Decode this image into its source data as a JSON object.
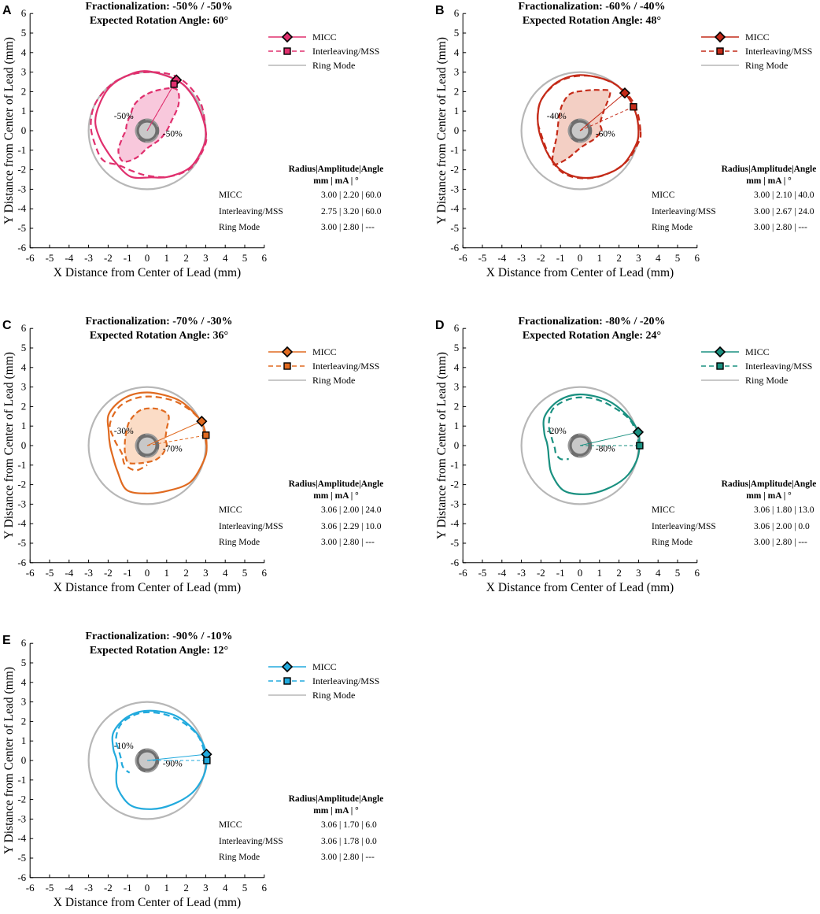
{
  "shared": {
    "xlabel": "X Distance from Center of Lead (mm)",
    "ylabel": "Y Distance from Center of Lead (mm)",
    "xlim": [
      -6,
      6
    ],
    "ylim": [
      -6,
      6
    ],
    "xticks": [
      -6,
      -5,
      -4,
      -3,
      -2,
      -1,
      0,
      1,
      2,
      3,
      4,
      5,
      6
    ],
    "yticks": [
      -6,
      -5,
      -4,
      -3,
      -2,
      -1,
      0,
      1,
      2,
      3,
      4,
      5,
      6
    ],
    "legend": {
      "micc": "MICC",
      "interleaving": "Interleaving/MSS",
      "ring": "Ring Mode"
    },
    "table_header": {
      "row1": "Radius|Amplitude|Angle",
      "row2": "mm  |     mA    |   °"
    },
    "ring_color": "#b7b7b7",
    "lead_outer_color": "#6e6e6e",
    "lead_inner_color": "#c8c8c8"
  },
  "chart_data": [
    {
      "panel": "A",
      "type": "line",
      "title": "Fractionalization: -50% / -50%",
      "subtitle": "Expected Rotation Angle: 60°",
      "color": "#e0306e",
      "fill": "#f8c8dc",
      "contact_labels": [
        "-50%",
        "-50%"
      ],
      "micc": {
        "radius": 3.0,
        "amplitude": 2.2,
        "angle": 60.0,
        "text": "3.00 | 2.20 | 60.0"
      },
      "interleaving": {
        "radius": 2.75,
        "amplitude": 3.2,
        "angle": 60.0,
        "text": "2.75 | 3.20 | 60.0"
      },
      "ring": {
        "radius": 3.0,
        "amplitude": 2.8,
        "text": "3.00 | 2.80 | ---"
      },
      "micc_curve": [
        [
          0,
          3.0
        ],
        [
          20,
          2.9
        ],
        [
          40,
          2.95
        ],
        [
          60,
          3.0
        ],
        [
          90,
          3.05
        ],
        [
          110,
          3.0
        ],
        [
          130,
          2.95
        ],
        [
          150,
          2.8
        ],
        [
          170,
          2.7
        ],
        [
          190,
          2.45
        ],
        [
          210,
          2.3
        ],
        [
          225,
          2.3
        ],
        [
          250,
          2.5
        ],
        [
          275,
          2.4
        ],
        [
          295,
          2.6
        ],
        [
          320,
          2.9
        ],
        [
          345,
          3.0
        ]
      ],
      "interleaving_curve": [
        [
          0,
          3.0
        ],
        [
          30,
          3.1
        ],
        [
          60,
          3.15
        ],
        [
          90,
          3.0
        ],
        [
          120,
          3.0
        ],
        [
          150,
          3.0
        ],
        [
          175,
          2.9
        ],
        [
          200,
          2.75
        ],
        [
          215,
          2.7
        ],
        [
          230,
          2.3
        ],
        [
          250,
          2.2
        ],
        [
          270,
          2.3
        ],
        [
          295,
          2.6
        ],
        [
          320,
          2.95
        ],
        [
          345,
          3.05
        ]
      ],
      "region_curve": [
        [
          0,
          1.0
        ],
        [
          20,
          1.3
        ],
        [
          40,
          2.1
        ],
        [
          55,
          2.6
        ],
        [
          75,
          2.15
        ],
        [
          95,
          1.8
        ],
        [
          115,
          1.5
        ],
        [
          135,
          1.2
        ],
        [
          160,
          1.1
        ],
        [
          180,
          1.1
        ],
        [
          195,
          1.3
        ],
        [
          215,
          1.8
        ],
        [
          232,
          2.0
        ],
        [
          248,
          1.5
        ],
        [
          270,
          0.9
        ],
        [
          300,
          0.75
        ],
        [
          330,
          0.8
        ]
      ]
    },
    {
      "panel": "B",
      "type": "line",
      "title": "Fractionalization: -60% / -40%",
      "subtitle": "Expected Rotation Angle: 48°",
      "color": "#c42a18",
      "fill": "#f3cfc4",
      "contact_labels": [
        "-40%",
        "-60%"
      ],
      "micc": {
        "radius": 3.0,
        "amplitude": 2.1,
        "angle": 40.0,
        "text": "3.00 | 2.10 | 40.0"
      },
      "interleaving": {
        "radius": 3.0,
        "amplitude": 2.67,
        "angle": 24.0,
        "text": "3.00 | 2.67 | 24.0"
      },
      "ring": {
        "radius": 3.0,
        "amplitude": 2.8,
        "text": "3.00 | 2.80 | ---"
      },
      "micc_curve": [
        [
          0,
          3.0
        ],
        [
          20,
          3.0
        ],
        [
          40,
          3.0
        ],
        [
          60,
          2.95
        ],
        [
          90,
          2.85
        ],
        [
          115,
          2.75
        ],
        [
          140,
          2.55
        ],
        [
          160,
          2.3
        ],
        [
          180,
          2.1
        ],
        [
          200,
          2.0
        ],
        [
          220,
          2.05
        ],
        [
          245,
          2.25
        ],
        [
          270,
          2.4
        ],
        [
          295,
          2.55
        ],
        [
          320,
          2.8
        ],
        [
          345,
          2.95
        ]
      ],
      "interleaving_curve": [
        [
          0,
          3.1
        ],
        [
          25,
          3.1
        ],
        [
          50,
          3.0
        ],
        [
          80,
          2.85
        ],
        [
          110,
          2.75
        ],
        [
          140,
          2.55
        ],
        [
          165,
          2.25
        ],
        [
          185,
          2.0
        ],
        [
          205,
          1.95
        ],
        [
          225,
          2.1
        ],
        [
          250,
          2.35
        ],
        [
          275,
          2.45
        ],
        [
          300,
          2.6
        ],
        [
          325,
          2.85
        ],
        [
          348,
          3.05
        ]
      ],
      "region_curve": [
        [
          0,
          1.1
        ],
        [
          20,
          1.1
        ],
        [
          40,
          1.6
        ],
        [
          52,
          2.5
        ],
        [
          65,
          2.3
        ],
        [
          85,
          2.05
        ],
        [
          105,
          1.95
        ],
        [
          125,
          1.6
        ],
        [
          150,
          1.25
        ],
        [
          175,
          1.15
        ],
        [
          200,
          1.3
        ],
        [
          220,
          1.8
        ],
        [
          232,
          2.2
        ],
        [
          245,
          1.6
        ],
        [
          270,
          0.9
        ],
        [
          300,
          0.75
        ],
        [
          330,
          0.85
        ]
      ]
    },
    {
      "panel": "C",
      "type": "line",
      "title": "Fractionalization: -70% / -30%",
      "subtitle": "Expected Rotation Angle: 36°",
      "color": "#e06a20",
      "fill": "#fbdcc6",
      "contact_labels": [
        "-30%",
        "-70%"
      ],
      "micc": {
        "radius": 3.06,
        "amplitude": 2.0,
        "angle": 24.0,
        "text": "3.06 | 2.00 | 24.0"
      },
      "interleaving": {
        "radius": 3.06,
        "amplitude": 2.29,
        "angle": 10.0,
        "text": "3.06 | 2.29 | 10.0"
      },
      "ring": {
        "radius": 3.0,
        "amplitude": 2.8,
        "text": "3.00 | 2.80 | ---"
      },
      "micc_curve": [
        [
          0,
          3.05
        ],
        [
          20,
          3.05
        ],
        [
          40,
          2.9
        ],
        [
          60,
          2.8
        ],
        [
          90,
          2.72
        ],
        [
          115,
          2.7
        ],
        [
          140,
          2.55
        ],
        [
          160,
          2.1
        ],
        [
          180,
          1.9
        ],
        [
          200,
          1.85
        ],
        [
          220,
          2.0
        ],
        [
          245,
          2.5
        ],
        [
          270,
          2.45
        ],
        [
          295,
          2.55
        ],
        [
          320,
          2.9
        ],
        [
          345,
          3.0
        ]
      ],
      "interleaving_curve": [
        [
          0,
          3.05
        ],
        [
          25,
          3.0
        ],
        [
          50,
          2.75
        ],
        [
          75,
          2.55
        ],
        [
          100,
          2.5
        ],
        [
          125,
          2.45
        ],
        [
          150,
          2.2
        ],
        [
          170,
          1.7
        ],
        [
          185,
          1.45
        ],
        [
          200,
          1.35
        ],
        [
          220,
          1.5
        ],
        [
          245,
          1.4
        ],
        [
          270,
          1.0
        ]
      ],
      "region_curve": [
        [
          0,
          1.0
        ],
        [
          20,
          1.0
        ],
        [
          40,
          1.3
        ],
        [
          55,
          1.9
        ],
        [
          75,
          1.95
        ],
        [
          100,
          1.85
        ],
        [
          125,
          1.55
        ],
        [
          150,
          1.25
        ],
        [
          175,
          1.15
        ],
        [
          200,
          1.2
        ],
        [
          222,
          1.3
        ],
        [
          245,
          1.0
        ],
        [
          270,
          0.85
        ],
        [
          300,
          0.85
        ],
        [
          330,
          0.9
        ]
      ]
    },
    {
      "panel": "D",
      "type": "line",
      "title": "Fractionalization: -80% / -20%",
      "subtitle": "Expected Rotation Angle: 24°",
      "color": "#1a9080",
      "fill": "none",
      "contact_labels": [
        "-20%",
        "-80%"
      ],
      "micc": {
        "radius": 3.06,
        "amplitude": 1.8,
        "angle": 13.0,
        "text": "3.06 | 1.80 | 13.0"
      },
      "interleaving": {
        "radius": 3.06,
        "amplitude": 2.0,
        "angle": 0.0,
        "text": "3.06 | 2.00 | 0.0"
      },
      "ring": {
        "radius": 3.0,
        "amplitude": 2.8,
        "text": "3.00 | 2.80 | ---"
      },
      "micc_curve": [
        [
          0,
          3.05
        ],
        [
          15,
          3.05
        ],
        [
          35,
          2.85
        ],
        [
          60,
          2.7
        ],
        [
          90,
          2.62
        ],
        [
          115,
          2.55
        ],
        [
          140,
          2.35
        ],
        [
          160,
          1.95
        ],
        [
          175,
          1.7
        ],
        [
          190,
          1.65
        ],
        [
          205,
          1.75
        ],
        [
          225,
          2.05
        ],
        [
          250,
          2.45
        ],
        [
          275,
          2.5
        ],
        [
          300,
          2.6
        ],
        [
          325,
          2.85
        ],
        [
          345,
          3.0
        ]
      ],
      "interleaving_curve": [
        [
          0,
          3.05
        ],
        [
          25,
          2.9
        ],
        [
          50,
          2.6
        ],
        [
          75,
          2.5
        ],
        [
          100,
          2.45
        ],
        [
          125,
          2.35
        ],
        [
          145,
          1.95
        ],
        [
          165,
          1.5
        ],
        [
          185,
          1.3
        ],
        [
          200,
          1.3
        ],
        [
          215,
          1.2
        ],
        [
          230,
          0.9
        ]
      ],
      "region_curve": []
    },
    {
      "panel": "E",
      "type": "line",
      "title": "Fractionalization: -90% / -10%",
      "subtitle": "Expected Rotation Angle: 12°",
      "color": "#22aadd",
      "fill": "none",
      "contact_labels": [
        "-10%",
        "-90%"
      ],
      "micc": {
        "radius": 3.06,
        "amplitude": 1.7,
        "angle": 6.0,
        "text": "3.06 | 1.70 | 6.0"
      },
      "interleaving": {
        "radius": 3.06,
        "amplitude": 1.78,
        "angle": 0.0,
        "text": "3.06 | 1.78 | 0.0"
      },
      "ring": {
        "radius": 3.0,
        "amplitude": 2.8,
        "text": "3.00 | 2.80 | ---"
      },
      "micc_curve": [
        [
          0,
          3.05
        ],
        [
          15,
          3.0
        ],
        [
          35,
          2.85
        ],
        [
          60,
          2.7
        ],
        [
          90,
          2.55
        ],
        [
          115,
          2.45
        ],
        [
          140,
          2.25
        ],
        [
          160,
          1.85
        ],
        [
          175,
          1.6
        ],
        [
          190,
          1.55
        ],
        [
          205,
          1.75
        ],
        [
          225,
          2.1
        ],
        [
          250,
          2.45
        ],
        [
          275,
          2.5
        ],
        [
          300,
          2.6
        ],
        [
          325,
          2.85
        ],
        [
          345,
          3.0
        ]
      ],
      "interleaving_curve": [
        [
          0,
          3.05
        ],
        [
          25,
          2.9
        ],
        [
          50,
          2.65
        ],
        [
          75,
          2.5
        ],
        [
          100,
          2.45
        ],
        [
          125,
          2.3
        ],
        [
          145,
          1.95
        ],
        [
          160,
          1.55
        ],
        [
          175,
          1.35
        ],
        [
          190,
          1.3
        ],
        [
          200,
          1.25
        ],
        [
          215,
          1.1
        ]
      ],
      "region_curve": []
    }
  ]
}
